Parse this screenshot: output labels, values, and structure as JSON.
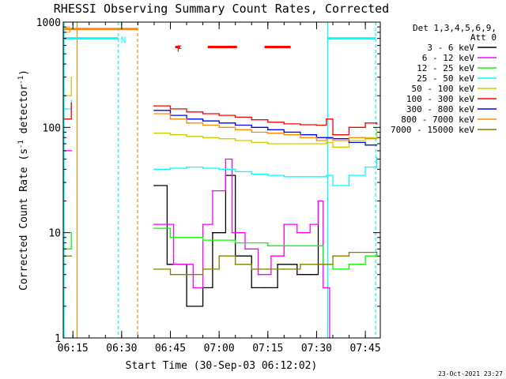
{
  "chart_data": {
    "type": "line",
    "title": "RHESSI Observing Summary Count Rates, Corrected",
    "xlabel": "Start Time (30-Sep-03 06:12:02)",
    "ylabel": "Corrected Count Rate (s",
    "ylabel_exp": "-1",
    "ylabel_tail": " detector",
    "ylabel_close": ")",
    "yscale": "log",
    "ylim": [
      1,
      1000
    ],
    "y_ticks": [
      {
        "value": 1,
        "label": "1"
      },
      {
        "value": 10,
        "label": "10"
      },
      {
        "value": 100,
        "label": "100"
      },
      {
        "value": 1000,
        "label": "1000"
      }
    ],
    "xlim": [
      12.03,
      109.6
    ],
    "x_ticks": [
      {
        "value": 15,
        "label": "06:15"
      },
      {
        "value": 30,
        "label": "06:30"
      },
      {
        "value": 45,
        "label": "06:45"
      },
      {
        "value": 60,
        "label": "07:00"
      },
      {
        "value": 75,
        "label": "07:15"
      },
      {
        "value": 90,
        "label": "07:30"
      },
      {
        "value": 105,
        "label": "07:45"
      }
    ],
    "legend_header": [
      "Det 1,3,4,5,6,9,",
      "Att 0"
    ],
    "series": [
      {
        "name": "3 - 6 keV",
        "color": "#000000",
        "x": [
          25,
          40,
          44,
          50,
          55,
          58,
          62,
          65,
          70,
          74,
          78,
          84,
          88,
          90.5
        ],
        "y": [
          null,
          28,
          5,
          2,
          3,
          10,
          35,
          6,
          3,
          3,
          5,
          4,
          4,
          20
        ]
      },
      {
        "name": "6 - 12 keV",
        "color": "#ff00ff",
        "x": [
          12.5,
          14.5,
          40,
          46,
          52,
          55,
          58,
          62,
          64,
          68,
          72,
          76,
          80,
          84,
          88,
          90.5,
          92,
          94
        ],
        "y": [
          60,
          60,
          12,
          5,
          3,
          12,
          25,
          50,
          10,
          7,
          4,
          6,
          12,
          10,
          12,
          20,
          3,
          1
        ]
      },
      {
        "name": "12 - 25 keV",
        "color": "#00ff00",
        "x": [
          12.5,
          14.5,
          40,
          45,
          55,
          65,
          75,
          85,
          90,
          92,
          95,
          100,
          105,
          108.5
        ],
        "y": [
          7,
          10,
          11,
          9,
          8.5,
          8,
          7.5,
          7.5,
          7.5,
          5,
          4.5,
          5,
          6,
          6.5
        ]
      },
      {
        "name": "25 - 50 keV",
        "color": "#00ffff",
        "x": [
          12.5,
          14.5,
          40,
          45,
          50,
          55,
          60,
          65,
          70,
          75,
          80,
          85,
          90,
          93,
          95,
          100,
          105,
          108.5
        ],
        "y": [
          150,
          180,
          40,
          41,
          42,
          41,
          40,
          38,
          36,
          35,
          34,
          34,
          34,
          35,
          28,
          35,
          42,
          52
        ]
      },
      {
        "name": "50 - 100 keV",
        "color": "#cccc00",
        "x": [
          12.5,
          14.5,
          40,
          45,
          50,
          55,
          60,
          65,
          70,
          75,
          80,
          85,
          90,
          93,
          95,
          100,
          105,
          108.5
        ],
        "y": [
          200,
          300,
          88,
          85,
          82,
          80,
          78,
          75,
          72,
          70,
          70,
          70,
          70,
          72,
          65,
          75,
          80,
          95
        ]
      },
      {
        "name": "100 - 300 keV",
        "color": "#ff0000",
        "x": [
          12.5,
          14.5,
          40,
          45,
          50,
          55,
          60,
          65,
          70,
          75,
          80,
          85,
          90,
          93,
          95,
          100,
          105,
          108.5
        ],
        "y": [
          120,
          170,
          160,
          150,
          140,
          135,
          130,
          125,
          118,
          112,
          108,
          106,
          105,
          120,
          85,
          100,
          110,
          108
        ]
      },
      {
        "name": "300 - 800 keV",
        "color": "#0000ff",
        "x": [
          40,
          45,
          50,
          55,
          60,
          65,
          70,
          75,
          80,
          85,
          90,
          93,
          95,
          100,
          105,
          108.5
        ],
        "y": [
          145,
          130,
          120,
          115,
          110,
          105,
          100,
          95,
          90,
          85,
          80,
          80,
          78,
          72,
          68,
          68
        ]
      },
      {
        "name": "800 - 7000 keV",
        "color": "#ff8c00",
        "x": [
          40,
          45,
          50,
          55,
          60,
          65,
          70,
          75,
          80,
          85,
          90,
          93,
          95,
          100,
          105,
          108.5
        ],
        "y": [
          135,
          120,
          110,
          105,
          100,
          95,
          90,
          88,
          85,
          80,
          75,
          78,
          75,
          80,
          78,
          78
        ]
      },
      {
        "name": "7000 - 15000 keV",
        "color": "#808000",
        "x": [
          12.5,
          14.5,
          40,
          45,
          50,
          55,
          60,
          65,
          70,
          75,
          80,
          85,
          90,
          92,
          95,
          100,
          105,
          108.5
        ],
        "y": [
          6,
          6,
          4.5,
          4,
          4,
          4.5,
          6,
          5,
          4.5,
          4.5,
          4.5,
          5,
          5,
          5,
          6,
          6.5,
          6.5,
          6.5
        ]
      }
    ],
    "vlines": [
      {
        "x": 12.3,
        "color": "#00ffff",
        "style": "solid"
      },
      {
        "x": 16.3,
        "color": "#ff8c00",
        "style": "solid"
      },
      {
        "x": 29.0,
        "color": "#00ffff",
        "style": "dashed"
      },
      {
        "x": 34.9,
        "color": "#ff8c00",
        "style": "dashed"
      },
      {
        "x": 93.4,
        "color": "#00ffff",
        "style": "solid"
      },
      {
        "x": 108.2,
        "color": "#00ffff",
        "style": "dashed"
      }
    ],
    "flag_bars": [
      {
        "label": "S",
        "color": "#ff8c00",
        "x0": 12.3,
        "x1": 34.9,
        "y": 860
      },
      {
        "label": "N",
        "color": "#00ffff",
        "x0": 12.3,
        "x1": 29.0,
        "y": 700
      },
      {
        "label": "",
        "color": "#00ffff",
        "x0": 93.4,
        "x1": 108.2,
        "y": 700
      },
      {
        "label": "F",
        "color": "#ff0000",
        "x0": 46.5,
        "x1": 48.0,
        "y": 580
      },
      {
        "label": "",
        "color": "#ff0000",
        "x0": 56.5,
        "x1": 65.5,
        "y": 580
      },
      {
        "label": "",
        "color": "#ff0000",
        "x0": 74.0,
        "x1": 82.0,
        "y": 580
      }
    ],
    "timestamp": "23-Oct-2021 23:27"
  }
}
